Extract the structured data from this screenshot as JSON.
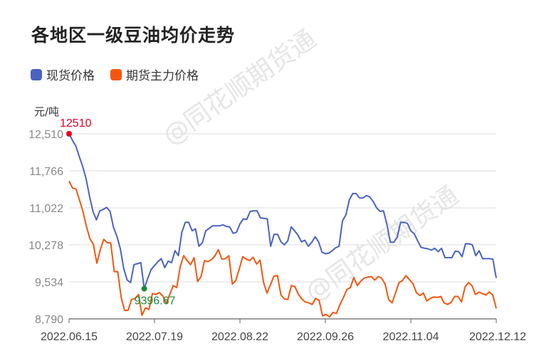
{
  "title": "各地区一级豆油均价走势",
  "legend": [
    {
      "label": "现货价格",
      "color": "#4a63c1"
    },
    {
      "label": "期货主力价格",
      "color": "#f5560f"
    }
  ],
  "unit": "元/吨",
  "watermark": "@同花顺期货通",
  "annotations": {
    "max_label": "12510",
    "max_color": "#e8001c",
    "min_label": "9396.67",
    "min_color": "#1a8a3c"
  },
  "chart_data": {
    "type": "line",
    "title": "各地区一级豆油均价走势",
    "xlabel": "",
    "ylabel": "元/吨",
    "ylim": [
      8790,
      12510
    ],
    "y_ticks": [
      "8,790",
      "9,534",
      "10,278",
      "11,022",
      "11,766",
      "12,510"
    ],
    "x_ticks": [
      "2022.06.15",
      "2022.07.19",
      "2022.08.22",
      "2022.09.26",
      "2022.11.04",
      "2022.12.12"
    ],
    "grid": true,
    "legend_position": "top-left",
    "series": [
      {
        "name": "现货价格",
        "color": "#4a63c1",
        "values": [
          12510,
          12380,
          12260,
          12050,
          11850,
          11600,
          11250,
          10950,
          10780,
          10960,
          10990,
          11030,
          10950,
          10630,
          10450,
          10200,
          9800,
          9570,
          9520,
          9880,
          9900,
          9920,
          9397,
          9600,
          9780,
          9860,
          9940,
          10000,
          9820,
          9950,
          9920,
          10160,
          10060,
          10530,
          10730,
          10730,
          10560,
          10600,
          10250,
          10320,
          10560,
          10610,
          10660,
          10660,
          10660,
          10680,
          10650,
          10640,
          10510,
          10530,
          10700,
          10800,
          10790,
          10950,
          10960,
          10960,
          10820,
          10810,
          10800,
          10250,
          10490,
          10490,
          10340,
          10280,
          10360,
          10640,
          10560,
          10470,
          10340,
          10370,
          10250,
          10330,
          10440,
          10340,
          10130,
          10100,
          10110,
          10160,
          10220,
          10250,
          10760,
          10880,
          11180,
          11310,
          11310,
          11220,
          11220,
          11270,
          11240,
          11150,
          11020,
          10950,
          10960,
          10690,
          10330,
          10330,
          10430,
          10730,
          10730,
          10710,
          10560,
          10500,
          10360,
          10230,
          10210,
          10200,
          10170,
          10210,
          10140,
          10210,
          10020,
          10020,
          10020,
          10150,
          10140,
          10040,
          10300,
          10300,
          10280,
          10060,
          10160,
          10000,
          10000,
          10000,
          9990,
          9610
        ],
        "annotations": {
          "max": 12510,
          "min": 9396.67
        }
      },
      {
        "name": "期货主力价格",
        "color": "#f5560f",
        "values": [
          11560,
          11420,
          11400,
          11180,
          10950,
          10650,
          10400,
          10290,
          9910,
          10180,
          10390,
          10320,
          10320,
          9740,
          9740,
          9220,
          8960,
          8960,
          9180,
          9200,
          9280,
          8860,
          9010,
          8980,
          9300,
          9280,
          9320,
          9250,
          9100,
          9280,
          9460,
          9420,
          9840,
          10060,
          9960,
          9880,
          10020,
          9540,
          9640,
          9960,
          9940,
          9980,
          10060,
          10180,
          9990,
          10000,
          10060,
          9490,
          9560,
          9790,
          10040,
          9990,
          9960,
          10030,
          9890,
          9970,
          9520,
          9310,
          9480,
          9650,
          9660,
          9270,
          9190,
          9180,
          9460,
          9440,
          9290,
          9190,
          9130,
          9110,
          9080,
          9200,
          9160,
          8850,
          8880,
          8830,
          8920,
          8900,
          9080,
          9220,
          9380,
          9420,
          9620,
          9460,
          9550,
          9610,
          9630,
          9640,
          9570,
          9640,
          9610,
          9490,
          9180,
          9110,
          9310,
          9520,
          9560,
          9660,
          9580,
          9500,
          9320,
          9260,
          9310,
          9150,
          9200,
          9230,
          9220,
          9240,
          9110,
          9080,
          9120,
          9240,
          9240,
          9130,
          9430,
          9520,
          9460,
          9280,
          9330,
          9300,
          9270,
          9330,
          9270,
          9000
        ],
        "annotations": {}
      }
    ]
  }
}
